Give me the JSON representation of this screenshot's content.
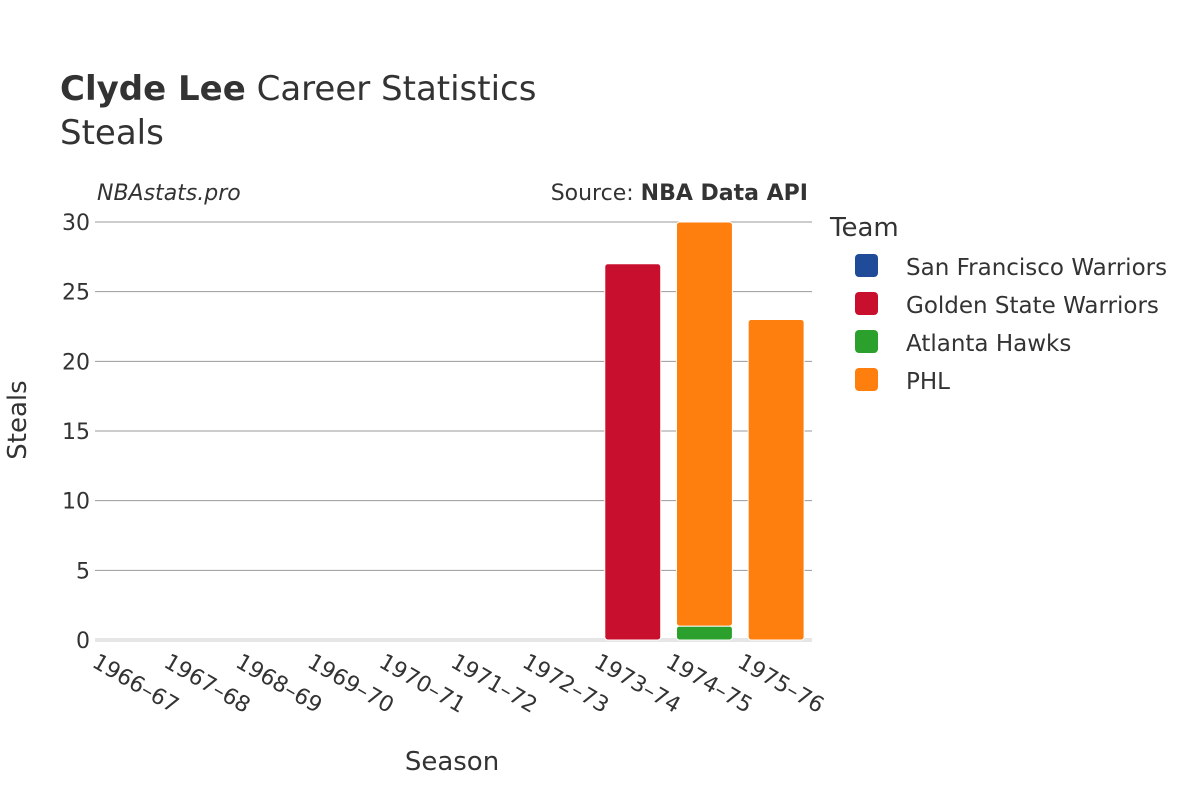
{
  "header": {
    "player_name": "Clyde Lee",
    "title_suffix": " Career Statistics",
    "subtitle": "Steals"
  },
  "credits": {
    "site": "NBAstats.pro",
    "source_prefix": "Source: ",
    "source_name": "NBA Data API"
  },
  "legend": {
    "title": "Team",
    "placement": "right"
  },
  "chart_data": {
    "type": "bar",
    "stacked": true,
    "title": "Clyde Lee Career Statistics",
    "subtitle": "Steals",
    "xlabel": "Season",
    "ylabel": "Steals",
    "ylim": [
      0,
      30
    ],
    "yticks": [
      0,
      5,
      10,
      15,
      20,
      25,
      30
    ],
    "grid": true,
    "categories": [
      "1966–67",
      "1967–68",
      "1968–69",
      "1969–70",
      "1970–71",
      "1971–72",
      "1972–73",
      "1973–74",
      "1974–75",
      "1975–76"
    ],
    "series": [
      {
        "name": "San Francisco Warriors",
        "color": "#1f4b99",
        "values": [
          0,
          0,
          0,
          0,
          0,
          0,
          0,
          0,
          0,
          0
        ]
      },
      {
        "name": "Golden State Warriors",
        "color": "#c8102e",
        "values": [
          0,
          0,
          0,
          0,
          0,
          0,
          0,
          27,
          0,
          0
        ]
      },
      {
        "name": "Atlanta Hawks",
        "color": "#2ca02c",
        "values": [
          0,
          0,
          0,
          0,
          0,
          0,
          0,
          0,
          1,
          0
        ]
      },
      {
        "name": "PHL",
        "color": "#ff7f0e",
        "values": [
          0,
          0,
          0,
          0,
          0,
          0,
          0,
          0,
          29,
          23
        ]
      }
    ]
  }
}
